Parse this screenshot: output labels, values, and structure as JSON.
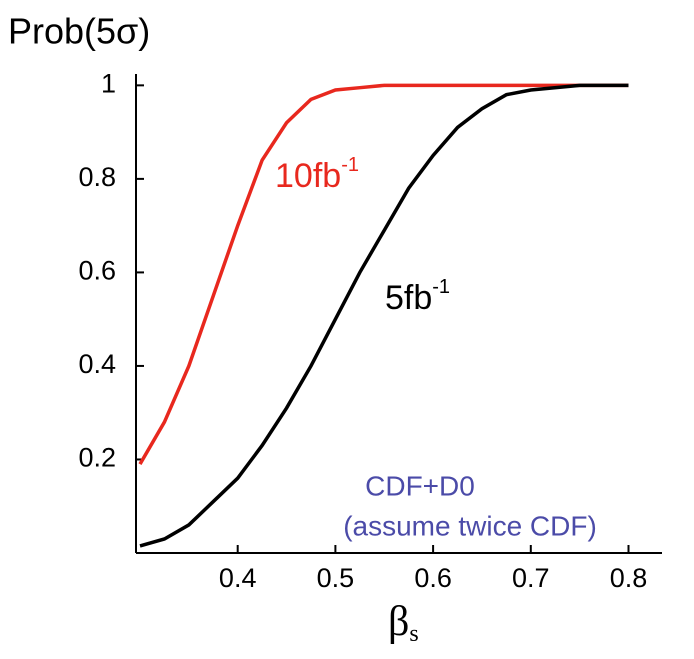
{
  "chart_data": {
    "type": "line",
    "ylabel": "Prob(5σ)",
    "xlabel": {
      "text": "β",
      "sub": "s"
    },
    "xlim": [
      0.3,
      0.8
    ],
    "xticks": [
      0.4,
      0.5,
      0.6,
      0.7,
      0.8
    ],
    "ylim": [
      0,
      1.02
    ],
    "yticks": [
      0.2,
      0.4,
      0.6,
      0.8,
      1
    ],
    "x": [
      0.3,
      0.325,
      0.35,
      0.375,
      0.4,
      0.425,
      0.45,
      0.475,
      0.5,
      0.525,
      0.55,
      0.575,
      0.6,
      0.625,
      0.65,
      0.675,
      0.7,
      0.75,
      0.8
    ],
    "series": [
      {
        "name": "10fb",
        "sup": "-1",
        "color": "#e8281e",
        "values": [
          0.19,
          0.28,
          0.4,
          0.55,
          0.7,
          0.84,
          0.92,
          0.97,
          0.99,
          0.995,
          1.0,
          1.0,
          1.0,
          1.0,
          1.0,
          1.0,
          1.0,
          1.0,
          1.0
        ]
      },
      {
        "name": "5fb",
        "sup": "-1",
        "color": "#000000",
        "values": [
          0.015,
          0.03,
          0.06,
          0.11,
          0.16,
          0.23,
          0.31,
          0.4,
          0.5,
          0.6,
          0.69,
          0.78,
          0.85,
          0.91,
          0.95,
          0.98,
          0.99,
          1.0,
          1.0
        ]
      }
    ],
    "annotations": [
      {
        "text": "CDF+D0",
        "color": "#4b4ba8"
      },
      {
        "text": "(assume twice CDF)",
        "color": "#4b4ba8"
      }
    ]
  }
}
